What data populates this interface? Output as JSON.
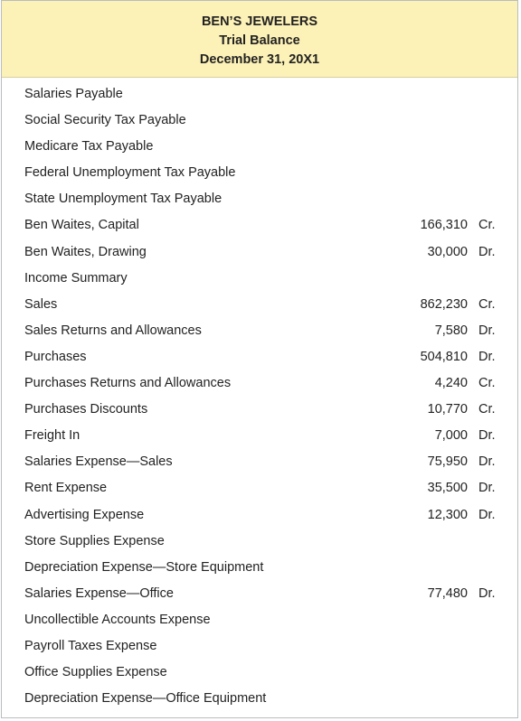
{
  "header": {
    "company": "BEN’S JEWELERS",
    "report": "Trial Balance",
    "date": "December 31, 20X1"
  },
  "rows": [
    {
      "account": "Salaries Payable",
      "amount": "",
      "side": ""
    },
    {
      "account": "Social Security Tax Payable",
      "amount": "",
      "side": ""
    },
    {
      "account": "Medicare Tax Payable",
      "amount": "",
      "side": ""
    },
    {
      "account": "Federal Unemployment Tax Payable",
      "amount": "",
      "side": ""
    },
    {
      "account": "State Unemployment Tax Payable",
      "amount": "",
      "side": ""
    },
    {
      "account": "Ben Waites, Capital",
      "amount": "166,310",
      "side": "Cr."
    },
    {
      "account": "Ben Waites, Drawing",
      "amount": "30,000",
      "side": "Dr."
    },
    {
      "account": "Income Summary",
      "amount": "",
      "side": ""
    },
    {
      "account": "Sales",
      "amount": "862,230",
      "side": "Cr."
    },
    {
      "account": "Sales Returns and Allowances",
      "amount": "7,580",
      "side": "Dr."
    },
    {
      "account": "Purchases",
      "amount": "504,810",
      "side": "Dr."
    },
    {
      "account": "Purchases Returns and Allowances",
      "amount": "4,240",
      "side": "Cr."
    },
    {
      "account": "Purchases Discounts",
      "amount": "10,770",
      "side": "Cr."
    },
    {
      "account": "Freight In",
      "amount": "7,000",
      "side": "Dr."
    },
    {
      "account": "Salaries Expense—Sales",
      "amount": "75,950",
      "side": "Dr."
    },
    {
      "account": "Rent Expense",
      "amount": "35,500",
      "side": "Dr."
    },
    {
      "account": "Advertising Expense",
      "amount": "12,300",
      "side": "Dr."
    },
    {
      "account": "Store Supplies Expense",
      "amount": "",
      "side": ""
    },
    {
      "account": "Depreciation Expense—Store Equipment",
      "amount": "",
      "side": ""
    },
    {
      "account": "Salaries Expense—Office",
      "amount": "77,480",
      "side": "Dr."
    },
    {
      "account": "Uncollectible Accounts Expense",
      "amount": "",
      "side": ""
    },
    {
      "account": "Payroll Taxes Expense",
      "amount": "",
      "side": ""
    },
    {
      "account": "Office Supplies Expense",
      "amount": "",
      "side": ""
    },
    {
      "account": "Depreciation Expense—Office Equipment",
      "amount": "",
      "side": ""
    }
  ]
}
